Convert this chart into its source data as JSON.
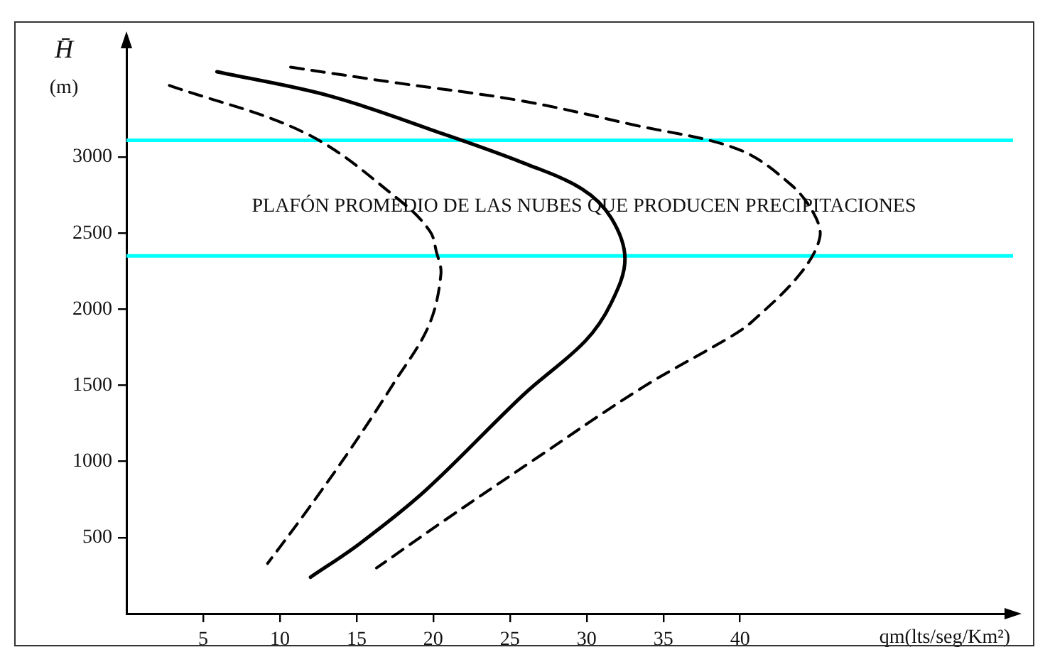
{
  "chart_data": {
    "type": "line",
    "xlabel": "qm(lts/seg/Km²)",
    "ylabel": "H̄ (m)",
    "xlim": [
      0,
      57.8
    ],
    "ylim": [
      0,
      3770
    ],
    "xticks": [
      5,
      10,
      15,
      20,
      25,
      30,
      35,
      40
    ],
    "yticks": [
      500,
      1000,
      1500,
      2000,
      2500,
      3000
    ],
    "grid": false,
    "legend": false,
    "marker": "none",
    "series": [
      {
        "color": "#000000",
        "line_style": "dashed",
        "x": [
          2.8,
          11.8,
          18,
          19.8,
          20.2,
          20.5,
          19.7,
          17.4,
          14.6,
          11.5,
          9.2
        ],
        "values": [
          3470,
          3150,
          2700,
          2510,
          2380,
          2230,
          1890,
          1510,
          1080,
          640,
          330
        ]
      },
      {
        "color": "#000000",
        "line_style": "solid",
        "x": [
          5.9,
          13.3,
          20.7,
          25.9,
          29.7,
          31.6,
          32.5,
          31.6,
          29.9,
          25.9,
          19.5,
          15.2,
          12
        ],
        "values": [
          3560,
          3400,
          3150,
          2960,
          2790,
          2600,
          2330,
          2040,
          1790,
          1440,
          810,
          460,
          240
        ]
      },
      {
        "color": "#000000",
        "line_style": "dashed",
        "x": [
          10.7,
          17.4,
          25.7,
          33.1,
          39.9,
          43.3,
          44.8,
          45.2,
          43.9,
          40.8,
          39.4,
          33.7,
          26.7,
          20.7,
          16.3
        ],
        "values": [
          3590,
          3490,
          3370,
          3210,
          3050,
          2820,
          2630,
          2470,
          2230,
          1920,
          1820,
          1490,
          1020,
          610,
          300
        ]
      }
    ],
    "ref_lines": [
      {
        "axis": "y",
        "value": 3110,
        "color": "#00ffff"
      },
      {
        "axis": "y",
        "value": 2350,
        "color": "#00ffff"
      }
    ],
    "annotations": [
      "PLAFÓN PROMEDIO DE LAS NUBES QUE PRODUCEN PRECIPITACIONES"
    ]
  }
}
